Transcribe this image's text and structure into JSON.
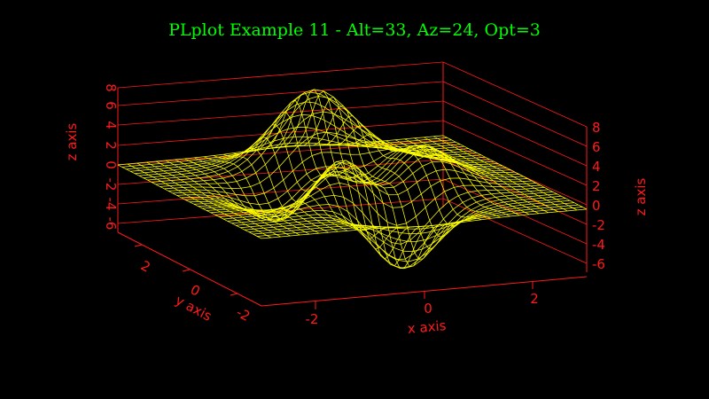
{
  "chart_data": {
    "type": "surface-mesh",
    "title": "PLplot Example 11 - Alt=33, Az=24, Opt=3",
    "xlabel": "x axis",
    "ylabel": "y axis",
    "zlabel": "z axis",
    "x_ticks": [
      "-2",
      "0",
      "2"
    ],
    "y_ticks": [
      "2",
      "0",
      "-2"
    ],
    "z_ticks": [
      "-6",
      "-4",
      "-2",
      "0",
      "2",
      "4",
      "6",
      "8"
    ],
    "xlim": [
      -3,
      3
    ],
    "ylim": [
      -3,
      3
    ],
    "zlim": [
      -7,
      8
    ],
    "altitude": 33,
    "azimuth": 24,
    "opt": 3,
    "grid_points": 35,
    "colors": {
      "title": "#00ff00",
      "axes": "#ff1a1a",
      "mesh": "#ffff00",
      "background": "#000000"
    }
  }
}
